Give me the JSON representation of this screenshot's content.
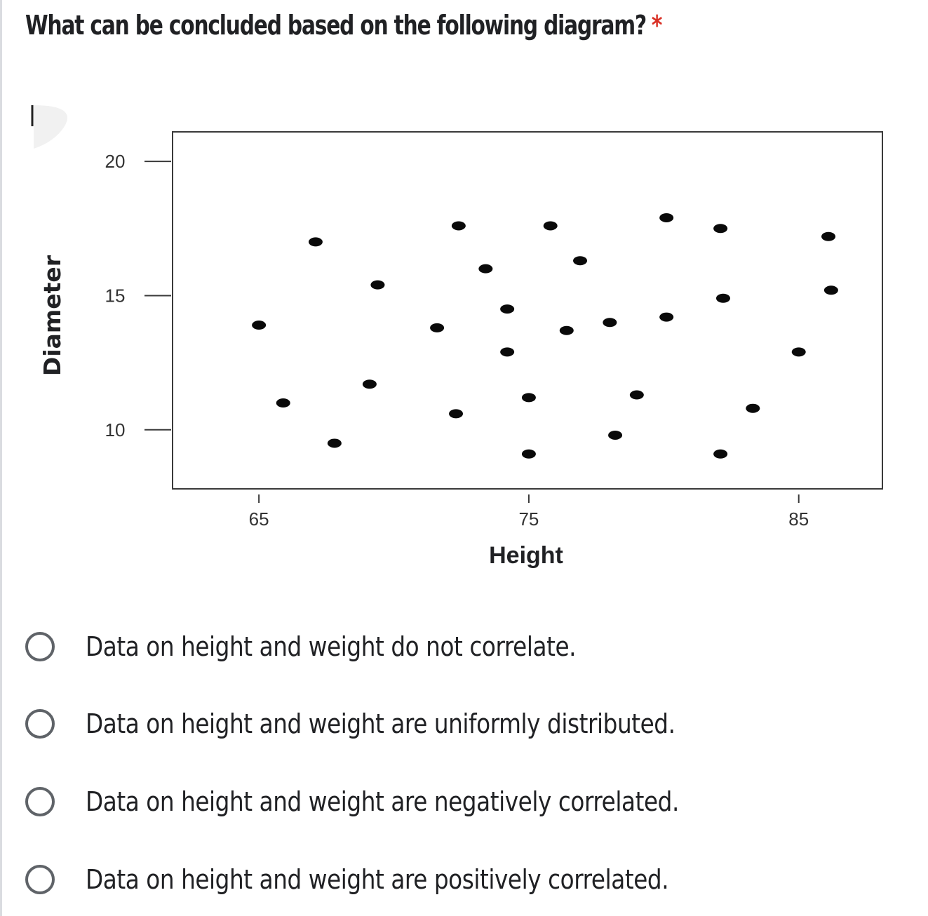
{
  "question": {
    "title": "What can be concluded based on the following diagram?",
    "required_marker": "*"
  },
  "chart_data": {
    "type": "scatter",
    "xlabel": "Height",
    "ylabel": "Diameter",
    "xticks": [
      "65",
      "75",
      "85"
    ],
    "yticks": [
      "10",
      "15",
      "20"
    ],
    "xlim": [
      61.8,
      88.1
    ],
    "ylim": [
      7.8,
      21.1
    ],
    "grid": false,
    "points": [
      {
        "x": 65.0,
        "y": 13.9
      },
      {
        "x": 65.9,
        "y": 11.0
      },
      {
        "x": 67.1,
        "y": 17.0
      },
      {
        "x": 67.8,
        "y": 9.5
      },
      {
        "x": 69.1,
        "y": 11.7
      },
      {
        "x": 69.4,
        "y": 15.4
      },
      {
        "x": 71.6,
        "y": 13.8
      },
      {
        "x": 72.3,
        "y": 10.6
      },
      {
        "x": 72.4,
        "y": 17.6
      },
      {
        "x": 73.4,
        "y": 16.0
      },
      {
        "x": 74.2,
        "y": 14.5
      },
      {
        "x": 74.2,
        "y": 12.9
      },
      {
        "x": 75.0,
        "y": 11.2
      },
      {
        "x": 75.0,
        "y": 9.1
      },
      {
        "x": 75.8,
        "y": 17.6
      },
      {
        "x": 76.4,
        "y": 13.7
      },
      {
        "x": 76.9,
        "y": 16.3
      },
      {
        "x": 78.0,
        "y": 14.0
      },
      {
        "x": 78.2,
        "y": 9.8
      },
      {
        "x": 79.0,
        "y": 11.3
      },
      {
        "x": 80.1,
        "y": 14.2
      },
      {
        "x": 80.1,
        "y": 17.9
      },
      {
        "x": 82.1,
        "y": 9.1
      },
      {
        "x": 82.1,
        "y": 17.5
      },
      {
        "x": 82.2,
        "y": 14.9
      },
      {
        "x": 83.3,
        "y": 10.8
      },
      {
        "x": 85.0,
        "y": 12.9
      },
      {
        "x": 86.1,
        "y": 17.2
      },
      {
        "x": 86.2,
        "y": 15.2
      }
    ]
  },
  "options": [
    {
      "label": "Data on height and weight do not correlate.",
      "selected": false
    },
    {
      "label": "Data on height and weight are uniformly distributed.",
      "selected": false
    },
    {
      "label": "Data on height and weight are negatively correlated.",
      "selected": false
    },
    {
      "label": "Data on height and weight are positively correlated.",
      "selected": false
    }
  ]
}
